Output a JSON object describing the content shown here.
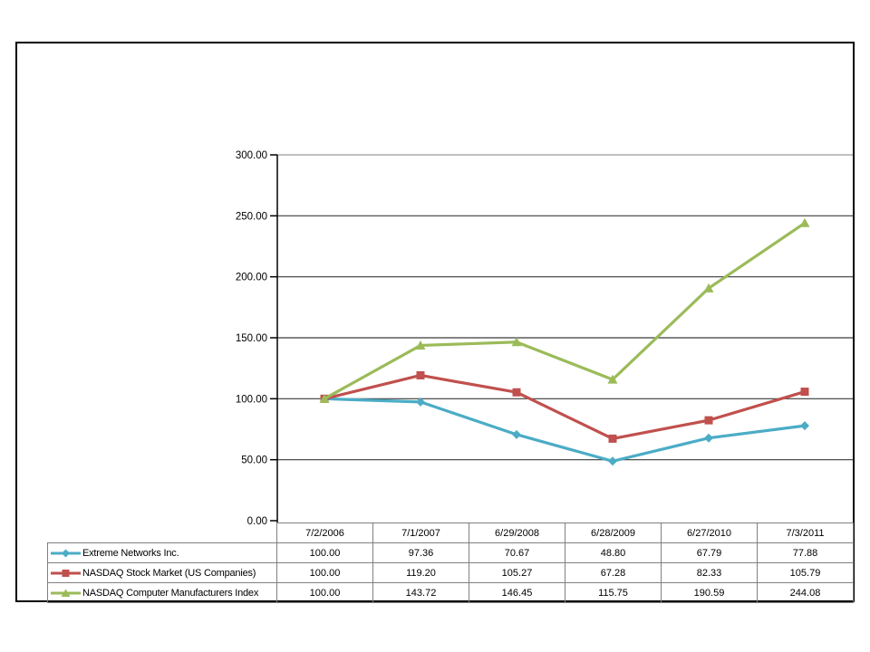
{
  "colors": {
    "axis": "#000000",
    "gridline": "#3a3a3a",
    "plot_top_border": "#9a9a9a",
    "table_border": "#808080",
    "text": "#000000",
    "background": "#ffffff",
    "series_teal": "#4BACC6",
    "series_red": "#C0504D",
    "series_green": "#9BBB59"
  },
  "chart_data": {
    "type": "line",
    "title": "",
    "xlabel": "",
    "ylabel": "",
    "x": [
      "7/2/2006",
      "7/1/2007",
      "6/29/2008",
      "6/28/2009",
      "6/27/2010",
      "7/3/2011"
    ],
    "series": [
      {
        "name": "Extreme Networks Inc.",
        "marker": "diamond",
        "color": "#4BACC6",
        "values": [
          100.0,
          97.36,
          70.67,
          48.8,
          67.79,
          77.88
        ]
      },
      {
        "name": "NASDAQ Stock Market (US Companies)",
        "marker": "square",
        "color": "#C0504D",
        "values": [
          100.0,
          119.2,
          105.27,
          67.28,
          82.33,
          105.79
        ]
      },
      {
        "name": "NASDAQ Computer Manufacturers Index",
        "marker": "triangle",
        "color": "#9BBB59",
        "values": [
          100.0,
          143.72,
          146.45,
          115.75,
          190.59,
          244.08
        ]
      }
    ],
    "ylim": [
      0,
      300
    ],
    "ytick_step": 50,
    "ytick_labels": [
      "0.00",
      "50.00",
      "100.00",
      "150.00",
      "200.00",
      "250.00",
      "300.00"
    ],
    "grid": true,
    "legend_position": "table-left-column"
  },
  "table": {
    "header_dates": [
      "7/2/2006",
      "7/1/2007",
      "6/29/2008",
      "6/28/2009",
      "6/27/2010",
      "7/3/2011"
    ],
    "rows": [
      {
        "label": "Extreme Networks Inc.",
        "cells": [
          "100.00",
          "97.36",
          "70.67",
          "48.80",
          "67.79",
          "77.88"
        ]
      },
      {
        "label": "NASDAQ Stock Market (US Companies)",
        "cells": [
          "100.00",
          "119.20",
          "105.27",
          "67.28",
          "82.33",
          "105.79"
        ]
      },
      {
        "label": "NASDAQ Computer Manufacturers Index",
        "cells": [
          "100.00",
          "143.72",
          "146.45",
          "115.75",
          "190.59",
          "244.08"
        ]
      }
    ]
  }
}
